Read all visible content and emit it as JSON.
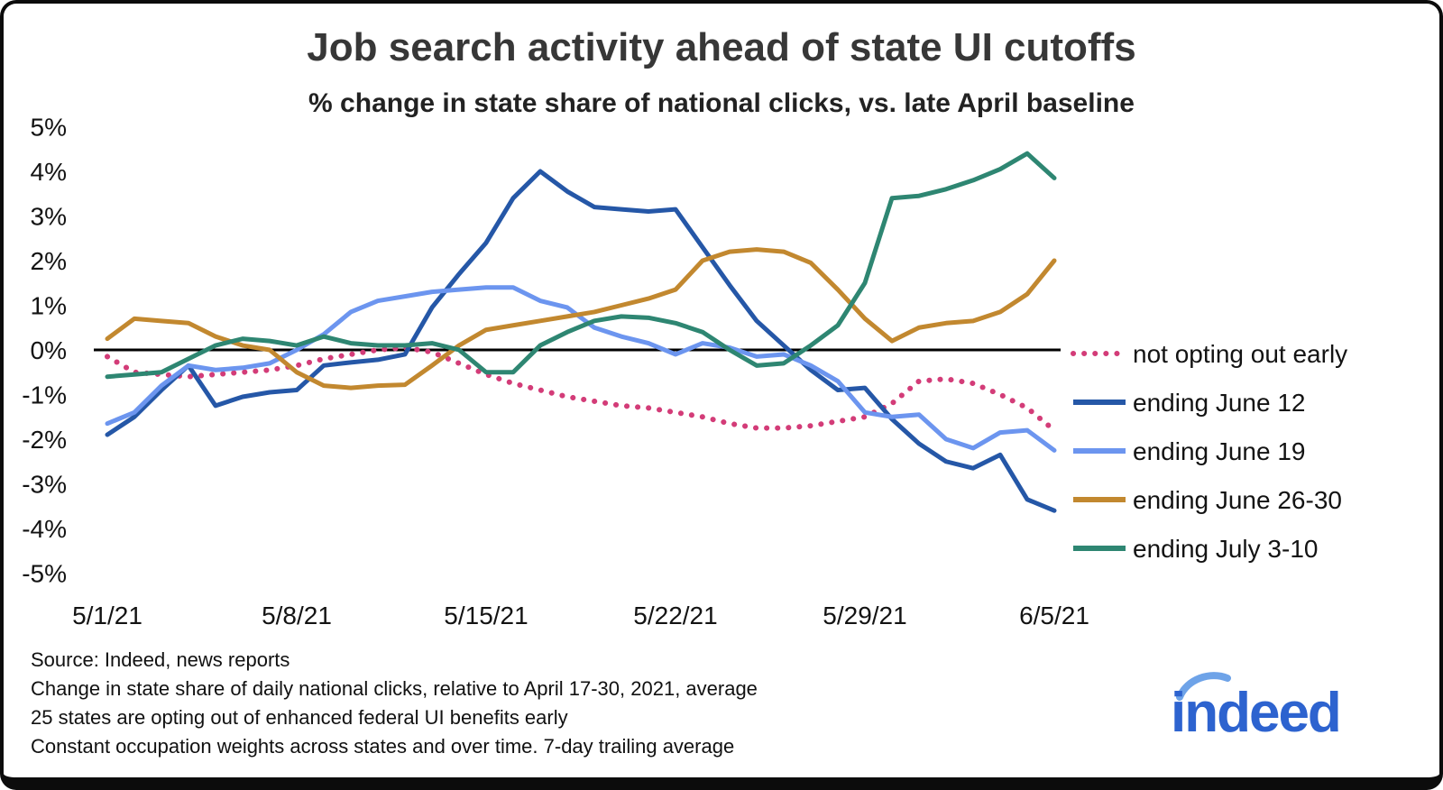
{
  "footnotes": [
    "Source: Indeed, news reports",
    "Change in state share of daily national clicks, relative to April 17-30, 2021, average",
    "25 states are opting out of enhanced federal UI benefits early",
    "Constant occupation weights across states and over time. 7-day trailing average"
  ],
  "logo": {
    "text": "indeed",
    "color": "#2d63cf",
    "swoosh_color": "#6ea3e8"
  },
  "chart_data": {
    "type": "line",
    "title": "Job search activity ahead of state UI cutoffs",
    "subtitle": "% change in state share of national clicks, vs. late April baseline",
    "x_start_date": "5/1/21",
    "x_end_date": "6/5/21",
    "x_frequency": "daily",
    "x_ticks": [
      {
        "label": "5/1/21",
        "day": 0
      },
      {
        "label": "5/8/21",
        "day": 7
      },
      {
        "label": "5/15/21",
        "day": 14
      },
      {
        "label": "5/22/21",
        "day": 21
      },
      {
        "label": "5/29/21",
        "day": 28
      },
      {
        "label": "6/5/21",
        "day": 35
      }
    ],
    "y_ticks": [
      "5%",
      "4%",
      "3%",
      "2%",
      "1%",
      "0%",
      "-1%",
      "-2%",
      "-3%",
      "-4%",
      "-5%"
    ],
    "ylim": [
      -5,
      5
    ],
    "grid": false,
    "zero_line": true,
    "legend_position": "right",
    "series": [
      {
        "name": "not opting out early",
        "style": "dotted",
        "color": "#d33c78",
        "values": [
          -0.15,
          -0.5,
          -0.55,
          -0.6,
          -0.55,
          -0.5,
          -0.45,
          -0.35,
          -0.2,
          -0.1,
          0.0,
          0.05,
          -0.05,
          -0.3,
          -0.55,
          -0.75,
          -0.9,
          -1.05,
          -1.15,
          -1.25,
          -1.3,
          -1.4,
          -1.5,
          -1.65,
          -1.75,
          -1.75,
          -1.7,
          -1.6,
          -1.5,
          -1.2,
          -0.7,
          -0.65,
          -0.75,
          -1.0,
          -1.3,
          -1.8
        ]
      },
      {
        "name": "ending June 12",
        "style": "solid",
        "color": "#2557a7",
        "values": [
          -1.9,
          -1.5,
          -0.9,
          -0.35,
          -1.25,
          -1.05,
          -0.95,
          -0.9,
          -0.35,
          -0.28,
          -0.22,
          -0.1,
          0.95,
          1.7,
          2.4,
          3.4,
          4.0,
          3.55,
          3.2,
          3.15,
          3.1,
          3.15,
          2.3,
          1.45,
          0.65,
          0.1,
          -0.45,
          -0.9,
          -0.85,
          -1.55,
          -2.1,
          -2.5,
          -2.65,
          -2.35,
          -3.35,
          -3.6
        ]
      },
      {
        "name": "ending June 19",
        "style": "solid",
        "color": "#6c95ef",
        "values": [
          -1.65,
          -1.4,
          -0.8,
          -0.35,
          -0.45,
          -0.4,
          -0.3,
          0.0,
          0.35,
          0.85,
          1.1,
          1.2,
          1.3,
          1.35,
          1.4,
          1.4,
          1.1,
          0.95,
          0.5,
          0.3,
          0.15,
          -0.1,
          0.15,
          0.05,
          -0.15,
          -0.1,
          -0.35,
          -0.7,
          -1.4,
          -1.5,
          -1.45,
          -2.0,
          -2.2,
          -1.85,
          -1.8,
          -2.25
        ]
      },
      {
        "name": "ending June 26-30",
        "style": "solid",
        "color": "#c2882f",
        "values": [
          0.25,
          0.7,
          0.65,
          0.6,
          0.3,
          0.1,
          0.0,
          -0.5,
          -0.8,
          -0.85,
          -0.8,
          -0.78,
          -0.35,
          0.1,
          0.45,
          0.55,
          0.65,
          0.75,
          0.85,
          1.0,
          1.15,
          1.35,
          2.0,
          2.2,
          2.25,
          2.2,
          1.95,
          1.35,
          0.7,
          0.2,
          0.5,
          0.6,
          0.65,
          0.85,
          1.25,
          2.0
        ]
      },
      {
        "name": "ending July 3-10",
        "style": "solid",
        "color": "#2e8672",
        "values": [
          -0.6,
          -0.55,
          -0.5,
          -0.2,
          0.1,
          0.25,
          0.2,
          0.1,
          0.3,
          0.15,
          0.1,
          0.1,
          0.15,
          0.0,
          -0.5,
          -0.5,
          0.1,
          0.4,
          0.65,
          0.75,
          0.72,
          0.6,
          0.4,
          0.0,
          -0.35,
          -0.3,
          0.1,
          0.55,
          1.5,
          3.4,
          3.45,
          3.6,
          3.8,
          4.05,
          4.4,
          3.85
        ]
      }
    ]
  }
}
